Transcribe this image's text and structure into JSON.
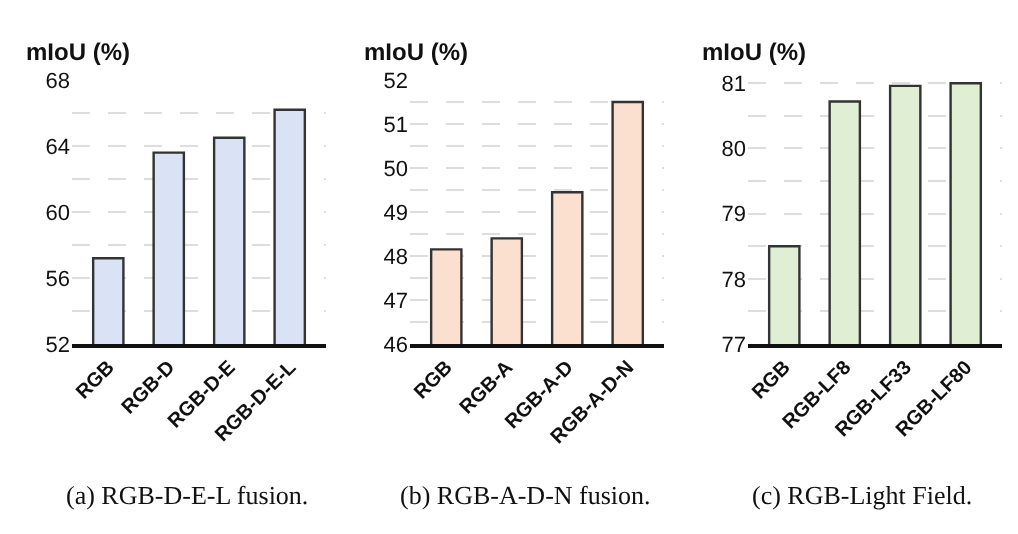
{
  "chart_data": [
    {
      "type": "bar",
      "ylabel": "mIoU (%)",
      "categories": [
        "RGB",
        "RGB-D",
        "RGB-D-E",
        "RGB-D-E-L"
      ],
      "values": [
        57.2,
        63.6,
        64.5,
        66.2
      ],
      "color": "#dae3f5",
      "ylim": [
        52,
        68
      ],
      "yticks": [
        52,
        {
          "value": 54,
          "label": null
        },
        56,
        {
          "value": 58,
          "label": null
        },
        60,
        {
          "value": 62,
          "label": null
        },
        64,
        {
          "value": 66,
          "label": null
        },
        68
      ],
      "grid": "y",
      "annotations": [
        "(a) RGB-D-E-L fusion."
      ]
    },
    {
      "type": "bar",
      "ylabel": "mIoU (%)",
      "categories": [
        "RGB",
        "RGB-A",
        "RGB-A-D",
        "RGB-A-D-N"
      ],
      "values": [
        48.15,
        48.4,
        49.45,
        51.5
      ],
      "color": "#fbe0cf",
      "ylim": [
        46,
        52
      ],
      "yticks": [
        46,
        {
          "value": 46.5,
          "label": null
        },
        47,
        {
          "value": 47.5,
          "label": null
        },
        48,
        {
          "value": 48.5,
          "label": null
        },
        49,
        {
          "value": 49.5,
          "label": null
        },
        50,
        {
          "value": 50.5,
          "label": null
        },
        51,
        {
          "value": 51.5,
          "label": null
        },
        52
      ],
      "grid": "y",
      "annotations": [
        "(b) RGB-A-D-N fusion."
      ]
    },
    {
      "type": "bar",
      "ylabel": "mIoU (%)",
      "categories": [
        "RGB",
        "RGB-LF8",
        "RGB-LF33",
        "RGB-LF80"
      ],
      "values": [
        78.5,
        80.72,
        80.96,
        81.0
      ],
      "color": "#e0efd4",
      "ylim": [
        77,
        81.05
      ],
      "yticks": [
        77,
        {
          "value": 77.5,
          "label": null
        },
        78,
        {
          "value": 78.5,
          "label": null
        },
        79,
        {
          "value": 79.5,
          "label": null
        },
        80,
        {
          "value": 80.5,
          "label": null
        },
        81
      ],
      "grid": "y",
      "annotations": [
        "(c) RGB-Light Field."
      ]
    }
  ]
}
